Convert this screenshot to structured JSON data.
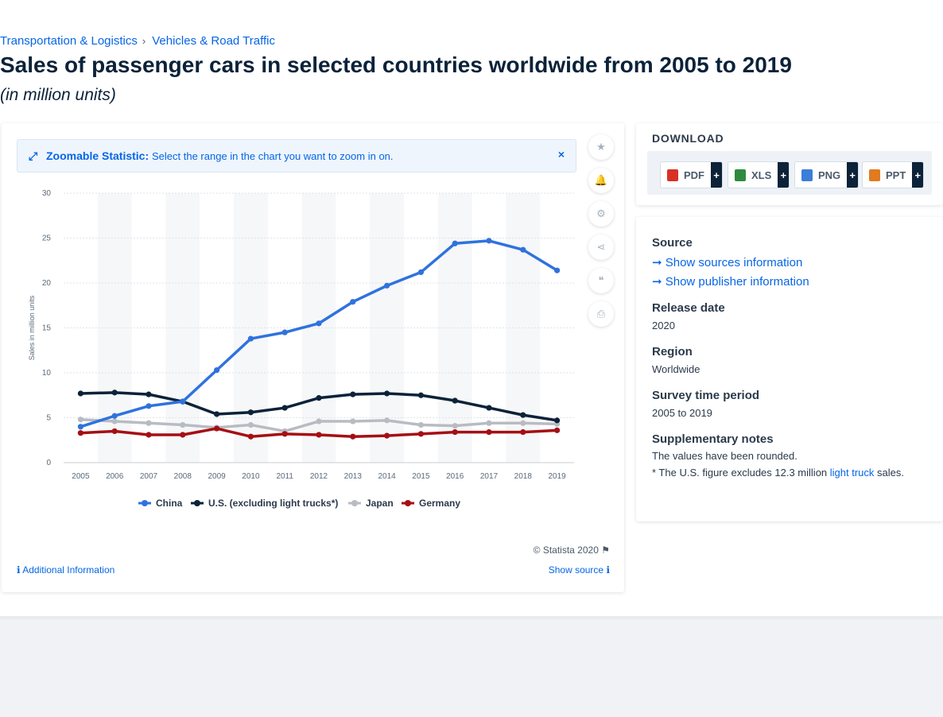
{
  "breadcrumb": {
    "items": [
      "Transportation & Logistics",
      "Vehicles & Road Traffic"
    ],
    "separator": "›"
  },
  "page": {
    "title": "Sales of passenger cars in selected countries worldwide from 2005 to 2019",
    "subtitle": "(in million units)"
  },
  "zoom_banner": {
    "title": "Zoomable Statistic:",
    "text": "Select the range in the chart you want to zoom in on.",
    "close": "×",
    "icon": "⤢"
  },
  "tools": {
    "star": "★",
    "bell": "🔔",
    "gear": "⚙",
    "share": "⋖",
    "quote": "❝",
    "print": "⎙"
  },
  "footer_links": {
    "copyright": "© Statista 2020",
    "flag": "⚑",
    "additional_info": "Additional Information",
    "show_source": "Show source",
    "info_icon": "ℹ"
  },
  "download": {
    "title": "DOWNLOAD",
    "buttons": [
      {
        "label": "PDF",
        "plus": "+",
        "color": "#d93025"
      },
      {
        "label": "XLS",
        "plus": "+",
        "color": "#2e8b3d"
      },
      {
        "label": "PNG",
        "plus": "+",
        "color": "#3b7dd8"
      },
      {
        "label": "PPT",
        "plus": "+",
        "color": "#e07b1f"
      }
    ]
  },
  "info": {
    "source_label": "Source",
    "show_sources": "➞ Show sources information",
    "show_publisher": "➞ Show publisher information",
    "release_label": "Release date",
    "release_value": "2020",
    "region_label": "Region",
    "region_value": "Worldwide",
    "survey_label": "Survey time period",
    "survey_value": "2005 to 2019",
    "notes_label": "Supplementary notes",
    "note1": "The values have been rounded.",
    "note2_prefix": "* The U.S. figure excludes 12.3 million",
    "note2_link": "light truck",
    "note2_suffix": "sales."
  },
  "chart_data": {
    "type": "line",
    "title": "",
    "xlabel": "",
    "ylabel": "Sales in million units",
    "ylim": [
      0,
      30
    ],
    "yticks": [
      0,
      5,
      10,
      15,
      20,
      25,
      30
    ],
    "grid": true,
    "legend": "bottom-center",
    "x": [
      "2005",
      "2006",
      "2007",
      "2008",
      "2009",
      "2010",
      "2011",
      "2012",
      "2013",
      "2014",
      "2015",
      "2016",
      "2017",
      "2018",
      "2019"
    ],
    "series": [
      {
        "name": "China",
        "color": "#2f72de",
        "values": [
          4.0,
          5.2,
          6.3,
          6.8,
          10.3,
          13.8,
          14.5,
          15.5,
          17.9,
          19.7,
          21.2,
          24.4,
          24.7,
          23.7,
          21.4
        ]
      },
      {
        "name": "U.S. (excluding light trucks*)",
        "color": "#0b2239",
        "values": [
          7.7,
          7.8,
          7.6,
          6.8,
          5.4,
          5.6,
          6.1,
          7.2,
          7.6,
          7.7,
          7.5,
          6.9,
          6.1,
          5.3,
          4.7
        ]
      },
      {
        "name": "Japan",
        "color": "#b8bcc2",
        "values": [
          4.8,
          4.6,
          4.4,
          4.2,
          3.9,
          4.2,
          3.5,
          4.6,
          4.6,
          4.7,
          4.2,
          4.1,
          4.4,
          4.4,
          4.3
        ]
      },
      {
        "name": "Germany",
        "color": "#a50f14",
        "values": [
          3.3,
          3.5,
          3.1,
          3.1,
          3.8,
          2.9,
          3.2,
          3.1,
          2.9,
          3.0,
          3.2,
          3.4,
          3.4,
          3.4,
          3.6
        ]
      }
    ]
  }
}
